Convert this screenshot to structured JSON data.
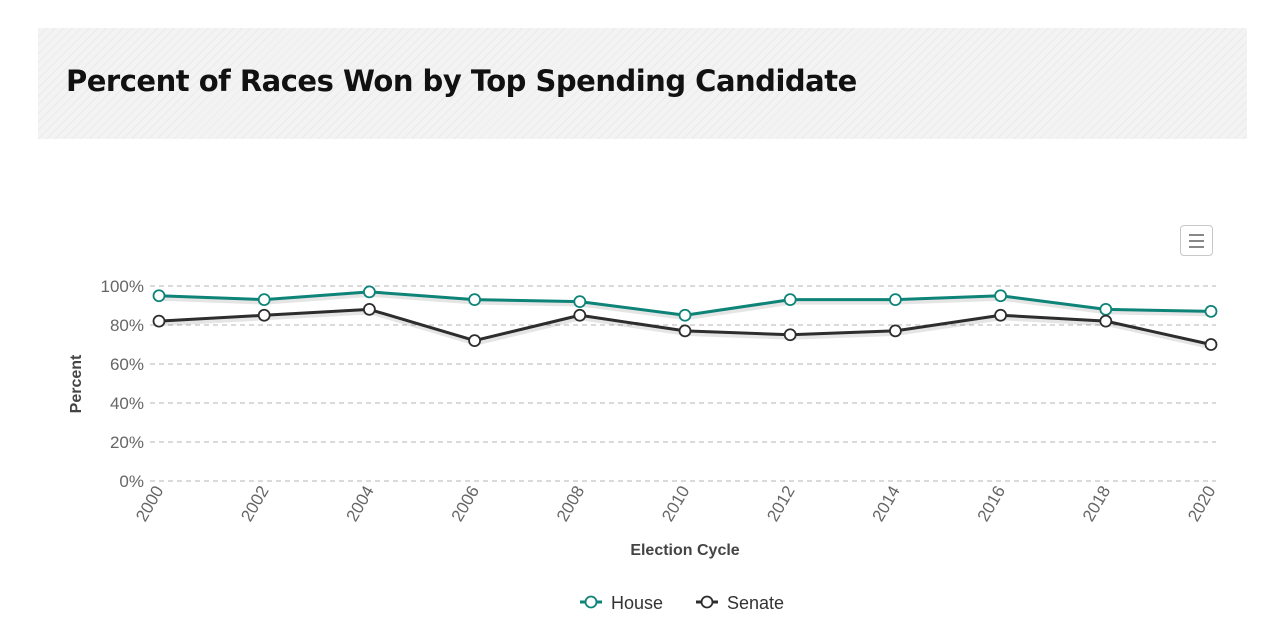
{
  "page": {
    "title": "Percent of Races Won by Top Spending Candidate"
  },
  "chart_menu": {
    "icon": "hamburger-menu-icon"
  },
  "chart_data": {
    "type": "line",
    "title": "Percent of Races Won by Top Spending Candidate",
    "xlabel": "Election Cycle",
    "ylabel": "Percent",
    "x": [
      "2000",
      "2002",
      "2004",
      "2006",
      "2008",
      "2010",
      "2012",
      "2014",
      "2016",
      "2018",
      "2020"
    ],
    "ylim": [
      0,
      100
    ],
    "yticks": [
      "0%",
      "20%",
      "40%",
      "60%",
      "80%",
      "100%"
    ],
    "grid": true,
    "legend_position": "bottom-center",
    "series": [
      {
        "name": "House",
        "color": "#0e8478",
        "values": [
          95,
          93,
          97,
          93,
          92,
          85,
          93,
          93,
          95,
          88,
          87
        ]
      },
      {
        "name": "Senate",
        "color": "#2d2d2d",
        "values": [
          82,
          85,
          88,
          72,
          85,
          77,
          75,
          77,
          85,
          82,
          70
        ]
      }
    ]
  }
}
